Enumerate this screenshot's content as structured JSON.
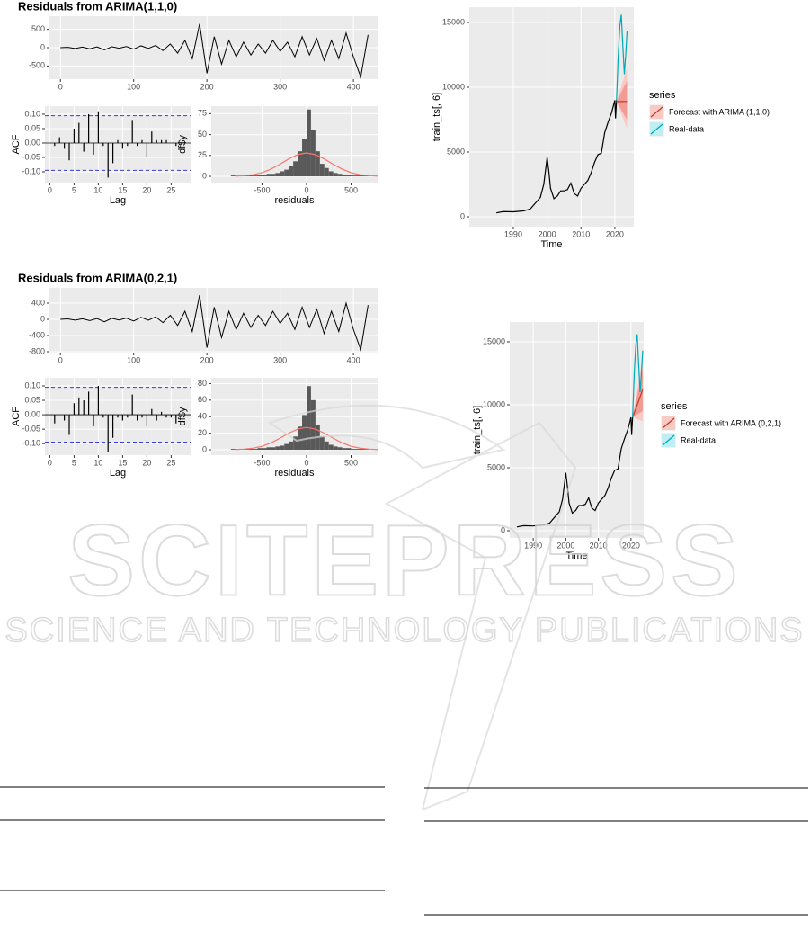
{
  "chart_data": [
    {
      "type": "line",
      "title": "Residuals from ARIMA(1,1,0)",
      "x": [
        0,
        10,
        20,
        30,
        40,
        50,
        60,
        70,
        80,
        90,
        100,
        110,
        120,
        130,
        140,
        150,
        160,
        170,
        180,
        190,
        200,
        210,
        220,
        230,
        240,
        250,
        260,
        270,
        280,
        290,
        300,
        310,
        320,
        330,
        340,
        350,
        360,
        370,
        380,
        390,
        400,
        410,
        420
      ],
      "values": [
        0,
        10,
        -20,
        15,
        -30,
        20,
        -60,
        25,
        -15,
        30,
        -40,
        50,
        -20,
        60,
        -80,
        100,
        -150,
        200,
        -300,
        650,
        -700,
        300,
        -450,
        200,
        -250,
        150,
        -200,
        100,
        -150,
        200,
        -100,
        150,
        -250,
        300,
        -200,
        250,
        -350,
        200,
        -300,
        400,
        -250,
        -800,
        350
      ],
      "color": "#000000",
      "xlim": [
        -15,
        433
      ],
      "ylim": [
        -860,
        860
      ],
      "xticks": [
        0,
        100,
        200,
        300,
        400
      ],
      "yticks": [
        -500,
        0,
        500
      ],
      "grid": true
    },
    {
      "type": "bar",
      "xlabel": "Lag",
      "ylabel": "ACF",
      "x": [
        1,
        2,
        3,
        4,
        5,
        6,
        7,
        8,
        9,
        10,
        11,
        12,
        13,
        14,
        15,
        16,
        17,
        18,
        19,
        20,
        21,
        22,
        23,
        24,
        25,
        26
      ],
      "values": [
        -0.01,
        0.02,
        -0.02,
        -0.06,
        0.05,
        0.07,
        -0.03,
        0.1,
        -0.04,
        0.11,
        -0.01,
        -0.12,
        -0.07,
        0.01,
        -0.02,
        -0.01,
        0.08,
        -0.01,
        0.01,
        -0.05,
        0.04,
        0.01,
        0.01,
        0.01,
        0.0,
        -0.01
      ],
      "color": "#000000",
      "ci": 0.095,
      "ci_color": "#3b3bd6",
      "xlim": [
        -1,
        29
      ],
      "ylim": [
        -0.1375,
        0.128
      ],
      "xticks": [
        0,
        5,
        10,
        15,
        20,
        25
      ],
      "yticks": [
        {
          "value": -0.1,
          "label": "-0.10"
        },
        {
          "value": -0.05,
          "label": "-0.05"
        },
        {
          "value": 0,
          "label": "0.00"
        },
        {
          "value": 0.05,
          "label": "0.05"
        },
        {
          "value": 0.1,
          "label": "0.10"
        }
      ],
      "grid": true
    },
    {
      "type": "histogram",
      "xlabel": "residuals",
      "ylabel": "df$y",
      "bins": [
        -850,
        -800,
        -750,
        -700,
        -650,
        -600,
        -550,
        -500,
        -450,
        -400,
        -350,
        -300,
        -250,
        -200,
        -150,
        -100,
        -50,
        0,
        50,
        100,
        150,
        200,
        250,
        300,
        350,
        400,
        450,
        500,
        550,
        600,
        650,
        700,
        750
      ],
      "counts": [
        1,
        0,
        1,
        1,
        1,
        1,
        2,
        2,
        3,
        3,
        4,
        6,
        8,
        12,
        18,
        30,
        45,
        80,
        55,
        30,
        15,
        10,
        6,
        4,
        3,
        2,
        2,
        1,
        1,
        1,
        1,
        0
      ],
      "color": "#595959",
      "curve": {
        "x": [
          -800,
          -700,
          -600,
          -500,
          -400,
          -300,
          -200,
          -100,
          0,
          100,
          200,
          300,
          400,
          500,
          600,
          700,
          800
        ],
        "values": [
          0.3,
          0.8,
          2,
          4.4,
          8.6,
          14.4,
          20.8,
          26,
          28,
          26,
          20.8,
          14.4,
          8.6,
          4.4,
          2,
          0.8,
          0.3
        ],
        "color": "#F8766D"
      },
      "xlim": [
        -1070,
        798
      ],
      "ylim": [
        -7.5,
        84
      ],
      "xticks": [
        -500,
        0,
        500
      ],
      "yticks": [
        0,
        25,
        50,
        75
      ],
      "grid": true
    },
    {
      "type": "line",
      "title": "Residuals from ARIMA(0,2,1)",
      "x": [
        0,
        10,
        20,
        30,
        40,
        50,
        60,
        70,
        80,
        90,
        100,
        110,
        120,
        130,
        140,
        150,
        160,
        170,
        180,
        190,
        200,
        210,
        220,
        230,
        240,
        250,
        260,
        270,
        280,
        290,
        300,
        310,
        320,
        330,
        340,
        350,
        360,
        370,
        380,
        390,
        400,
        410,
        420
      ],
      "values": [
        0,
        10,
        -20,
        15,
        -30,
        20,
        -60,
        25,
        -15,
        30,
        -40,
        50,
        -20,
        60,
        -80,
        100,
        -150,
        200,
        -300,
        600,
        -700,
        300,
        -450,
        200,
        -250,
        150,
        -200,
        100,
        -150,
        200,
        -100,
        150,
        -250,
        300,
        -200,
        250,
        -350,
        200,
        -300,
        400,
        -250,
        -750,
        350
      ],
      "color": "#000000",
      "xlim": [
        -15,
        433
      ],
      "ylim": [
        -822,
        778
      ],
      "xticks": [
        0,
        100,
        200,
        300,
        400
      ],
      "yticks": [
        -800,
        -400,
        0,
        400
      ],
      "grid": true
    },
    {
      "type": "bar",
      "xlabel": "Lag",
      "ylabel": "ACF",
      "x": [
        1,
        2,
        3,
        4,
        5,
        6,
        7,
        8,
        9,
        10,
        11,
        12,
        13,
        14,
        15,
        16,
        17,
        18,
        19,
        20,
        21,
        22,
        23,
        24,
        25,
        26
      ],
      "values": [
        -0.03,
        0.0,
        -0.02,
        -0.07,
        0.04,
        0.06,
        0.05,
        0.08,
        -0.04,
        0.1,
        -0.01,
        -0.13,
        -0.08,
        -0.01,
        -0.02,
        -0.01,
        0.07,
        -0.02,
        -0.01,
        -0.04,
        0.02,
        -0.02,
        0.01,
        -0.01,
        -0.01,
        -0.03
      ],
      "color": "#000000",
      "ci": 0.095,
      "ci_color": "#3b3bd6",
      "xlim": [
        -1,
        29
      ],
      "ylim": [
        -0.14,
        0.128
      ],
      "xticks": [
        0,
        5,
        10,
        15,
        20,
        25
      ],
      "yticks": [
        {
          "value": -0.1,
          "label": "-0.10"
        },
        {
          "value": -0.05,
          "label": "-0.05"
        },
        {
          "value": 0,
          "label": "0.00"
        },
        {
          "value": 0.05,
          "label": "0.05"
        },
        {
          "value": 0.1,
          "label": "0.10"
        }
      ],
      "grid": true
    },
    {
      "type": "histogram",
      "xlabel": "residuals",
      "ylabel": "df$y",
      "bins": [
        -850,
        -800,
        -750,
        -700,
        -650,
        -600,
        -550,
        -500,
        -450,
        -400,
        -350,
        -300,
        -250,
        -200,
        -150,
        -100,
        -50,
        0,
        50,
        100,
        150,
        200,
        250,
        300,
        350,
        400,
        450,
        500,
        550,
        600,
        650,
        700,
        750
      ],
      "counts": [
        1,
        0,
        1,
        1,
        1,
        1,
        2,
        2,
        3,
        3,
        4,
        5,
        7,
        10,
        16,
        28,
        42,
        77,
        60,
        30,
        16,
        10,
        6,
        4,
        3,
        2,
        2,
        1,
        1,
        1,
        1,
        0
      ],
      "color": "#595959",
      "curve": {
        "x": [
          -800,
          -700,
          -600,
          -500,
          -400,
          -300,
          -200,
          -100,
          0,
          100,
          200,
          300,
          400,
          500,
          600,
          700,
          800
        ],
        "values": [
          0.3,
          0.8,
          1.9,
          4.2,
          8.3,
          13.9,
          20,
          25,
          27,
          25,
          20,
          13.9,
          8.3,
          4.2,
          1.9,
          0.8,
          0.3
        ],
        "color": "#F8766D"
      },
      "xlim": [
        -1070,
        798
      ],
      "ylim": [
        -6.5,
        87
      ],
      "xticks": [
        -500,
        0,
        500
      ],
      "yticks": [
        0,
        20,
        40,
        60,
        80
      ],
      "grid": true
    },
    {
      "type": "line",
      "xlabel": "Time",
      "ylabel": "train_ts[, 6]",
      "legend": {
        "title": "series"
      },
      "series": [
        {
          "color": "#000000",
          "x": [
            1985,
            1987,
            1990,
            1993,
            1995,
            1997,
            1998,
            1999,
            2000,
            2000.5,
            2001,
            2002,
            2003,
            2004,
            2005,
            2006,
            2007,
            2008,
            2009,
            2010,
            2011,
            2012,
            2013,
            2014,
            2015,
            2016,
            2017,
            2018,
            2019,
            2020,
            2020.2,
            2020.5
          ],
          "values": [
            300,
            400,
            380,
            450,
            600,
            1200,
            1500,
            2500,
            4600,
            3500,
            2200,
            1400,
            1600,
            2000,
            2000,
            2100,
            2600,
            1800,
            1600,
            2200,
            2500,
            2800,
            3400,
            4200,
            4800,
            4900,
            6500,
            7300,
            8000,
            9000,
            7600,
            9000
          ]
        },
        {
          "name": "Forecast with ARIMA (1,1,0)",
          "color": "#C0392B",
          "x": [
            2020.5,
            2023.6
          ],
          "values": [
            8900,
            8900
          ],
          "bands": [
            {
              "lower": [
                8900,
                6800
              ],
              "upper": [
                8900,
                11500
              ],
              "color": "#f9c9c4"
            },
            {
              "lower": [
                8900,
                7500
              ],
              "upper": [
                8900,
                10500
              ],
              "color": "#f29b94"
            }
          ]
        },
        {
          "name": "Real-data",
          "color": "#00A9B5",
          "x": [
            2020.5,
            2021,
            2021.5,
            2021.9,
            2022.3,
            2022.8,
            2023.2,
            2023.6
          ],
          "values": [
            9000,
            12500,
            14800,
            15600,
            13500,
            11000,
            12500,
            14300
          ]
        }
      ],
      "xlim": [
        1977,
        2025.6
      ],
      "ylim": [
        -764,
        16181
      ],
      "xticks": [
        1990,
        2000,
        2010,
        2020
      ],
      "yticks": [
        0,
        5000,
        10000,
        15000
      ],
      "grid": true
    },
    {
      "type": "line",
      "xlabel": "Time",
      "ylabel": "train_ts[, 6]",
      "legend": {
        "title": "series"
      },
      "series": [
        {
          "color": "#000000",
          "x": [
            1985,
            1987,
            1990,
            1993,
            1995,
            1997,
            1998,
            1999,
            2000,
            2000.5,
            2001,
            2002,
            2003,
            2004,
            2005,
            2006,
            2007,
            2008,
            2009,
            2010,
            2011,
            2012,
            2013,
            2014,
            2015,
            2016,
            2017,
            2018,
            2019,
            2020,
            2020.2,
            2020.5
          ],
          "values": [
            300,
            400,
            380,
            450,
            600,
            1200,
            1500,
            2500,
            4600,
            3500,
            2200,
            1400,
            1600,
            2000,
            2000,
            2100,
            2600,
            1800,
            1600,
            2200,
            2500,
            2800,
            3400,
            4200,
            4800,
            4900,
            6500,
            7300,
            8000,
            9000,
            7600,
            9000
          ]
        },
        {
          "name": "Forecast with ARIMA (0,2,1)",
          "color": "#C0392B",
          "x": [
            2020.5,
            2023.6
          ],
          "values": [
            9000,
            11200
          ],
          "bands": [
            {
              "lower": [
                9000,
                8700
              ],
              "upper": [
                9000,
                13800
              ],
              "color": "#f9c9c4"
            },
            {
              "lower": [
                9000,
                9500
              ],
              "upper": [
                9000,
                12800
              ],
              "color": "#f29b94"
            }
          ]
        },
        {
          "name": "Real-data",
          "color": "#00A9B5",
          "x": [
            2020.5,
            2021,
            2021.5,
            2021.9,
            2022.3,
            2022.8,
            2023.2,
            2023.6
          ],
          "values": [
            9000,
            12500,
            14800,
            15600,
            13500,
            11000,
            12500,
            14300
          ]
        }
      ],
      "xlim": [
        1982.8,
        2023.9
      ],
      "ylim": [
        -571,
        16571
      ],
      "xticks": [
        1990,
        2000,
        2010,
        2020
      ],
      "yticks": [
        0,
        5000,
        10000,
        15000
      ],
      "grid": true
    }
  ],
  "watermark": {
    "title": "SCITEPRESS",
    "subtitle": "SCIENCE AND TECHNOLOGY PUBLICATIONS"
  }
}
